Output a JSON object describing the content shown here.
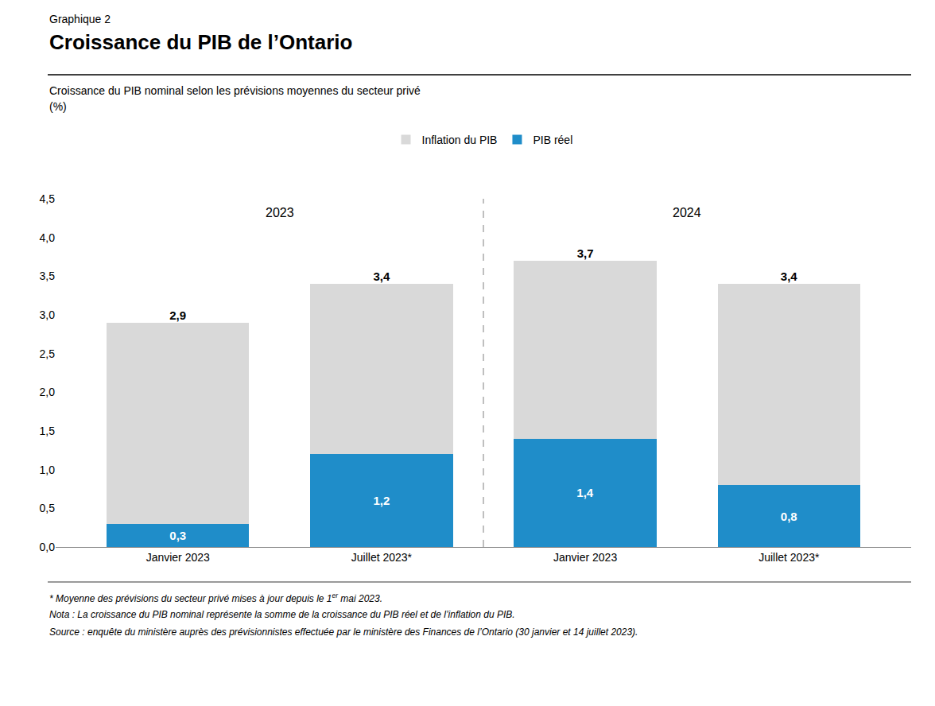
{
  "chart_data": {
    "type": "bar",
    "suptitle": "Graphique 2",
    "title": "Croissance du PIB de l’Ontario",
    "subtitle": [
      "Croissance du PIB nominal selon les prévisions moyennes du secteur privé",
      "(%)"
    ],
    "categories": [
      "Janvier 2023",
      "Juillet 2023*",
      "Janvier 2023",
      "Juillet 2023*"
    ],
    "annotations": [
      "2023",
      "2024"
    ],
    "stacked": true,
    "series": [
      {
        "name": "PIB réel",
        "color": "#1f8dc9",
        "values": [
          0.3,
          1.2,
          1.4,
          0.8
        ],
        "value_labels": [
          "0,3",
          "1,2",
          "1,4",
          "0,8"
        ]
      },
      {
        "name": "Inflation du PIB",
        "color": "#d9d9d9",
        "values": [
          2.6,
          2.2,
          2.3,
          2.6
        ]
      }
    ],
    "totals": [
      2.9,
      3.4,
      3.7,
      3.4
    ],
    "total_labels": [
      "2,9",
      "3,4",
      "3,7",
      "3,4"
    ],
    "data_labels": true,
    "ylim": [
      0,
      4.5
    ],
    "yticks": [
      {
        "value": 0.0,
        "label": "0,0"
      },
      {
        "value": 0.5,
        "label": "0,5"
      },
      {
        "value": 1.0,
        "label": "1,0"
      },
      {
        "value": 1.5,
        "label": "1,5"
      },
      {
        "value": 2.0,
        "label": "2,0"
      },
      {
        "value": 2.5,
        "label": "2,5"
      },
      {
        "value": 3.0,
        "label": "3,0"
      },
      {
        "value": 3.5,
        "label": "3,5"
      },
      {
        "value": 4.0,
        "label": "4,0"
      },
      {
        "value": 4.5,
        "label": "4,5"
      }
    ],
    "grid": false,
    "legend": "top",
    "footnotes": [
      {
        "text": "* Moyenne des prévisions du secteur privé mises à jour depuis le 1",
        "superscript": "er",
        "after": " mai 2023."
      },
      {
        "text": "Nota : La croissance du PIB nominal représente la somme de la croissance du PIB réel et de l’inflation du PIB."
      },
      {
        "text": "Source : enquête du ministère auprès des prévisionnistes effectuée par le ministère des Finances de l’Ontario (30 janvier et 14 juillet 2023)."
      }
    ],
    "background_color": "#ffffff"
  }
}
